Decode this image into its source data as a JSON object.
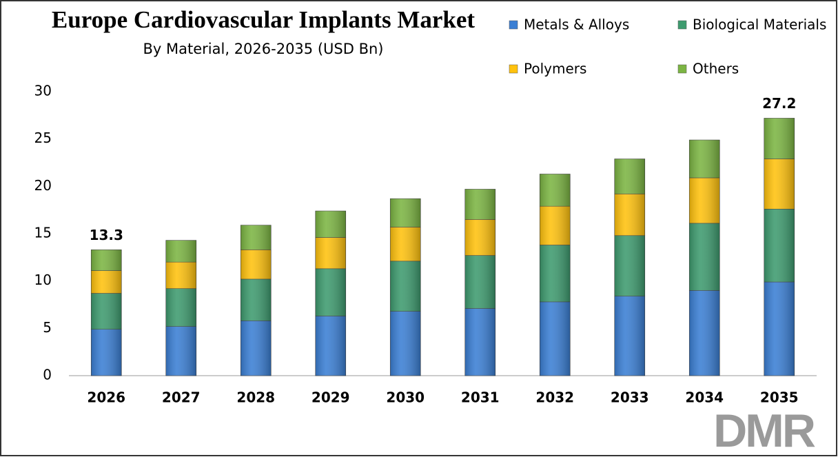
{
  "chart_data": {
    "type": "stacked_bar",
    "title": "Europe Cardiovascular Implants Market",
    "subtitle": "By Material, 2026-2035 (USD Bn)",
    "categories": [
      "2026",
      "2027",
      "2028",
      "2029",
      "2030",
      "2031",
      "2032",
      "2033",
      "2034",
      "2035"
    ],
    "series": [
      {
        "name": "Metals & Alloys",
        "color": "#3b7fd4",
        "values": [
          4.9,
          5.2,
          5.8,
          6.3,
          6.8,
          7.1,
          7.8,
          8.4,
          9.0,
          9.9
        ]
      },
      {
        "name": "Biological Materials",
        "color": "#3e9b6f",
        "values": [
          3.8,
          4.0,
          4.4,
          5.0,
          5.3,
          5.6,
          6.0,
          6.4,
          7.1,
          7.7
        ]
      },
      {
        "name": "Polymers",
        "color": "#ffc20e",
        "values": [
          2.4,
          2.8,
          3.1,
          3.3,
          3.6,
          3.8,
          4.1,
          4.4,
          4.8,
          5.3
        ]
      },
      {
        "name": "Others",
        "color": "#7cb543",
        "values": [
          2.2,
          2.3,
          2.6,
          2.8,
          3.0,
          3.2,
          3.4,
          3.7,
          4.0,
          4.3
        ]
      }
    ],
    "annotations": [
      {
        "category": "2026",
        "value": 13.3
      },
      {
        "category": "2035",
        "value": 27.2
      }
    ],
    "ylim": [
      0,
      30
    ],
    "yticks": [
      0,
      5,
      10,
      15,
      20,
      25,
      30
    ],
    "logo": "DMR"
  }
}
